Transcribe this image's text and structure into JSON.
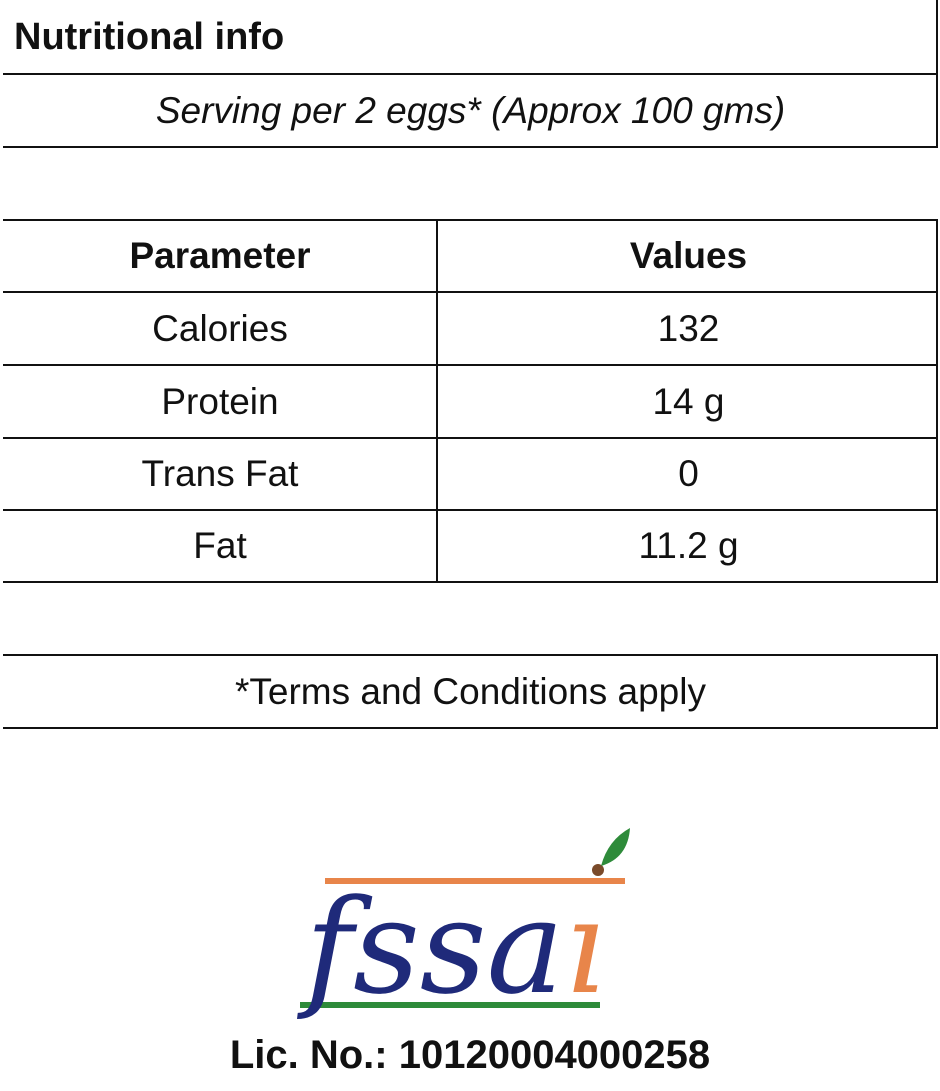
{
  "header": {
    "title": "Nutritional info",
    "serving": "Serving per 2 eggs* (Approx 100 gms)"
  },
  "table": {
    "headers": [
      "Parameter",
      "Values"
    ],
    "rows": [
      {
        "parameter": "Calories",
        "value": "132"
      },
      {
        "parameter": "Protein",
        "value": "14 g"
      },
      {
        "parameter": "Trans Fat",
        "value": "0"
      },
      {
        "parameter": "Fat",
        "value": "11.2 g"
      }
    ]
  },
  "footer": {
    "terms": "*Terms and Conditions apply",
    "license": "Lic. No.: 10120004000258"
  },
  "logo": {
    "text": "fssai",
    "colors": {
      "blue": "#1f2a7a",
      "orange": "#e8854a",
      "green": "#2e8b3a"
    }
  }
}
